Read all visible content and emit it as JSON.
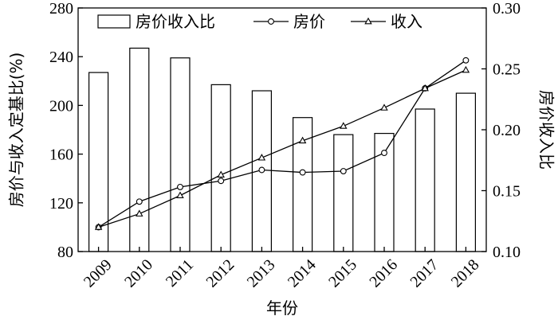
{
  "chart_data": {
    "type": "bar",
    "categories": [
      "2009",
      "2010",
      "2011",
      "2012",
      "2013",
      "2014",
      "2015",
      "2016",
      "2017",
      "2018"
    ],
    "xlabel": "年份",
    "ylabel_left": "房价与收入定基比(%)",
    "ylabel_right": "房价收入比",
    "ylim_left": [
      80,
      280
    ],
    "yticks_left": [
      "80",
      "120",
      "160",
      "200",
      "240",
      "280"
    ],
    "ylim_right": [
      0.1,
      0.3
    ],
    "yticks_right": [
      "0.10",
      "0.15",
      "0.20",
      "0.25",
      "0.30"
    ],
    "grid": false,
    "legend_position": "top",
    "series": [
      {
        "name": "房价收入比",
        "type": "bar",
        "axis": "right",
        "marker": "none",
        "values": [
          0.247,
          0.267,
          0.259,
          0.237,
          0.232,
          0.21,
          0.196,
          0.197,
          0.217,
          0.23
        ]
      },
      {
        "name": "房价",
        "type": "line",
        "axis": "left",
        "marker": "circle",
        "values": [
          100,
          121,
          133,
          138,
          147,
          145,
          146,
          161,
          214,
          237
        ]
      },
      {
        "name": "收入",
        "type": "line",
        "axis": "left",
        "marker": "triangle",
        "values": [
          100,
          111,
          126,
          143,
          157,
          171,
          183,
          198,
          214,
          229
        ]
      }
    ]
  }
}
